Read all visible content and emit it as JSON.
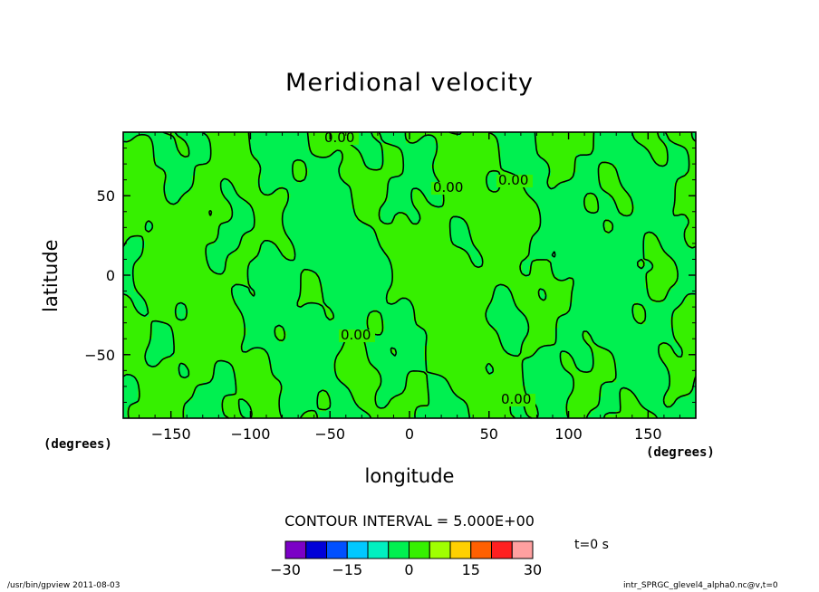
{
  "chart_data": {
    "type": "heatmap",
    "title": "Meridional velocity",
    "xlabel": "longitude",
    "ylabel": "latitude",
    "x_unit": "(degrees)",
    "y_unit": "(degrees)",
    "xlim": [
      -180,
      180
    ],
    "ylim": [
      -90,
      90
    ],
    "x_ticks": [
      -150,
      -100,
      -50,
      0,
      50,
      100,
      150
    ],
    "y_ticks": [
      50,
      0,
      -50
    ],
    "contour_interval_label": "CONTOUR INTERVAL = 5.000E+00",
    "contour_labels": [
      "0.00",
      "0.00",
      "0.00",
      "0.00",
      "0.00"
    ],
    "colorbar": {
      "tick_labels": [
        "−30",
        "−15",
        "0",
        "15",
        "30"
      ],
      "tick_values": [
        -30,
        -15,
        0,
        15,
        30
      ],
      "bins": [
        -30,
        -25,
        -20,
        -15,
        -10,
        -5,
        0,
        5,
        10,
        15,
        20,
        25,
        30
      ],
      "colors": [
        "#7b00c6",
        "#0000d8",
        "#0050ff",
        "#00c8ff",
        "#00f0c0",
        "#00f050",
        "#36f000",
        "#a0ff00",
        "#ffd000",
        "#ff6000",
        "#ff2020",
        "#ffa0a0"
      ]
    },
    "field_colors": {
      "negative_near_zero": "#00f050",
      "positive_near_zero": "#36f000"
    }
  },
  "time_label": "t=0 s",
  "footer": {
    "left": "/usr/bin/gpview  2011-08-03",
    "right": "intr_SPRGC_glevel4_alpha0.nc@v,t=0"
  }
}
